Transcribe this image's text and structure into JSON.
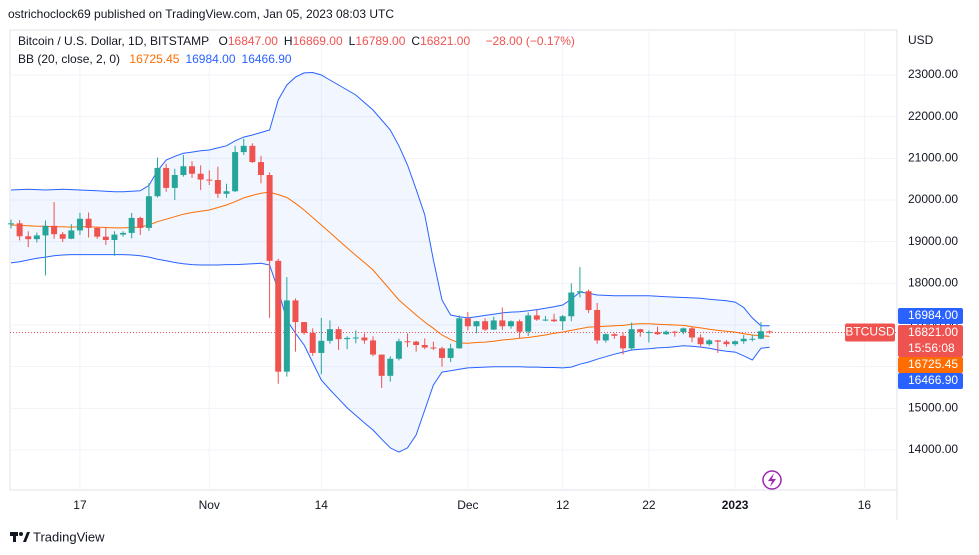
{
  "header": "ostrichoclock69 published on TradingView.com, Jan 05, 2023 08:03 UTC",
  "footer": "TradingView",
  "chart_data": {
    "type": "candlestick",
    "symbol": "Bitcoin / U.S. Dollar, 1D, BITSTAMP",
    "ohlc_text": [
      {
        "key": "O",
        "value": "16847.00"
      },
      {
        "key": "H",
        "value": "16869.00"
      },
      {
        "key": "L",
        "value": "16789.00"
      },
      {
        "key": "C",
        "value": "16821.00"
      }
    ],
    "change_text": "−28.00 (−0.17%)",
    "indicator": {
      "name": "BB (20, close, 2, 0)",
      "values": [
        {
          "text": "16725.45",
          "color": "#ff6d00"
        },
        {
          "text": "16984.00",
          "color": "#2962ff"
        },
        {
          "text": "16466.90",
          "color": "#2962ff"
        }
      ]
    },
    "currency": "USD",
    "symbol_badge": "BTCUSD",
    "up_color": "#26a69a",
    "down_color": "#ef5350",
    "categories": [
      null,
      null,
      null,
      null,
      null,
      null,
      null,
      null,
      "17",
      null,
      null,
      null,
      null,
      null,
      null,
      null,
      null,
      null,
      null,
      null,
      null,
      null,
      null,
      "Nov",
      null,
      null,
      null,
      null,
      null,
      null,
      null,
      null,
      null,
      null,
      null,
      null,
      "14",
      null,
      null,
      null,
      null,
      null,
      null,
      null,
      null,
      null,
      null,
      null,
      null,
      null,
      null,
      null,
      null,
      "Dec",
      null,
      null,
      null,
      null,
      null,
      null,
      null,
      null,
      null,
      null,
      "12",
      null,
      null,
      null,
      null,
      null,
      null,
      null,
      null,
      null,
      "22",
      null,
      null,
      null,
      null,
      null,
      null,
      null,
      null,
      null,
      "2023",
      null,
      null,
      null,
      null,
      null,
      null,
      null,
      null,
      null,
      null,
      null,
      null,
      null,
      null,
      "16",
      null,
      null,
      null
    ],
    "open": [
      19420,
      19440,
      19130,
      19060,
      19150,
      19380,
      19180,
      19070,
      19270,
      19550,
      19330,
      19120,
      19040,
      19170,
      19210,
      19570,
      19330,
      20090,
      20770,
      20290,
      20600,
      20810,
      20630,
      20490,
      20480,
      20150,
      20210,
      21150,
      21300,
      20910,
      20600,
      18540,
      15880,
      17590,
      17070,
      16810,
      16330,
      16620,
      16900,
      16660,
      16690,
      16700,
      16630,
      16290,
      15780,
      16190,
      16610,
      16600,
      16520,
      16460,
      16440,
      16210,
      16440,
      17160,
      16970,
      17090,
      16890,
      17110,
      16970,
      17090,
      16840,
      17230,
      17130,
      17130,
      17090,
      17210,
      17780,
      17810,
      17360,
      16630,
      16780,
      16740,
      16440,
      16900,
      16830,
      16830,
      16780,
      16840,
      16830,
      16920,
      16700,
      16540,
      16630,
      16600,
      16540,
      16610,
      16670,
      16670,
      16847,
      null,
      null,
      null,
      null,
      null,
      null,
      null,
      null,
      null,
      null,
      null,
      null,
      null,
      null
    ],
    "high": [
      19530,
      19520,
      19250,
      19220,
      19510,
      19950,
      19230,
      19420,
      19690,
      19700,
      19360,
      19350,
      19250,
      19250,
      19690,
      19600,
      20400,
      21020,
      20870,
      20750,
      21080,
      20930,
      20830,
      20710,
      20800,
      20390,
      21300,
      21470,
      21360,
      21060,
      20660,
      18590,
      18150,
      17640,
      17070,
      16920,
      17170,
      17110,
      16960,
      16730,
      16870,
      16800,
      16730,
      16290,
      16250,
      16670,
      16800,
      16620,
      16680,
      16600,
      16480,
      16550,
      17230,
      17310,
      17100,
      17160,
      17200,
      17420,
      17110,
      17130,
      17300,
      17360,
      17220,
      17270,
      17240,
      18000,
      18390,
      17850,
      17530,
      16800,
      16800,
      16820,
      17060,
      16910,
      16870,
      16960,
      16870,
      16860,
      16940,
      16960,
      16780,
      16660,
      16640,
      16640,
      16630,
      16760,
      16770,
      17070,
      16869,
      null,
      null,
      null,
      null,
      null,
      null,
      null,
      null,
      null,
      null,
      null,
      null,
      null,
      null
    ],
    "low": [
      19320,
      19030,
      18870,
      18980,
      18190,
      19070,
      18990,
      19060,
      19160,
      19100,
      19070,
      18920,
      18660,
      19120,
      19080,
      19160,
      19260,
      20060,
      20200,
      20000,
      20560,
      20530,
      20240,
      20360,
      20050,
      20050,
      20190,
      21080,
      20890,
      20400,
      17170,
      15590,
      15760,
      16360,
      16770,
      16260,
      15820,
      16550,
      16400,
      16420,
      16560,
      16550,
      16250,
      15490,
      15640,
      16150,
      16470,
      16360,
      16420,
      16400,
      16000,
      16110,
      16430,
      16870,
      16800,
      16860,
      16880,
      16880,
      16910,
      16690,
      16740,
      17100,
      17090,
      17070,
      16880,
      17090,
      17660,
      17290,
      16550,
      16580,
      16670,
      16290,
      16400,
      16720,
      16580,
      16760,
      16760,
      16720,
      16780,
      16590,
      16460,
      16500,
      16330,
      16480,
      16500,
      16550,
      16610,
      16660,
      16789,
      null,
      null,
      null,
      null,
      null,
      null,
      null,
      null,
      null,
      null,
      null,
      null,
      null,
      null
    ],
    "close": [
      19440,
      19130,
      19060,
      19150,
      19380,
      19180,
      19070,
      19270,
      19550,
      19330,
      19120,
      19040,
      19170,
      19210,
      19570,
      19330,
      20090,
      20770,
      20290,
      20600,
      20810,
      20630,
      20490,
      20480,
      20150,
      20210,
      21150,
      21300,
      20910,
      20600,
      18540,
      15880,
      17590,
      17070,
      16810,
      16330,
      16620,
      16900,
      16660,
      16690,
      16700,
      16630,
      16290,
      15780,
      16190,
      16610,
      16600,
      16520,
      16460,
      16440,
      16210,
      16440,
      17160,
      16970,
      17090,
      16890,
      17110,
      16970,
      17090,
      16840,
      17230,
      17130,
      17130,
      17090,
      17210,
      17780,
      17810,
      17360,
      16630,
      16780,
      16740,
      16440,
      16900,
      16830,
      16830,
      16780,
      16840,
      16830,
      16920,
      16700,
      16540,
      16630,
      16600,
      16540,
      16610,
      16670,
      16670,
      16850,
      16821,
      null,
      null,
      null,
      null,
      null,
      null,
      null,
      null,
      null,
      null,
      null,
      null,
      null,
      null
    ],
    "bb_upper": {
      "color": "#2962ff",
      "values": [
        20240,
        20250,
        20260,
        20250,
        20240,
        20250,
        20260,
        20250,
        20240,
        20230,
        20220,
        20210,
        20200,
        20200,
        20210,
        20220,
        20350,
        20700,
        20960,
        21050,
        21120,
        21150,
        21180,
        21200,
        21250,
        21300,
        21420,
        21510,
        21560,
        21620,
        21680,
        22400,
        22760,
        22950,
        23050,
        23060,
        23000,
        22880,
        22760,
        22640,
        22520,
        22340,
        22160,
        21920,
        21680,
        21300,
        20840,
        20260,
        19640,
        18560,
        17600,
        17240,
        17200,
        17170,
        17200,
        17230,
        17260,
        17290,
        17310,
        17320,
        17340,
        17370,
        17400,
        17440,
        17480,
        17620,
        17790,
        17760,
        17720,
        17710,
        17700,
        17700,
        17700,
        17700,
        17700,
        17690,
        17680,
        17670,
        17660,
        17650,
        17640,
        17620,
        17600,
        17580,
        17550,
        17420,
        17170,
        16980,
        16984,
        null,
        null,
        null,
        null,
        null,
        null,
        null,
        null,
        null,
        null,
        null,
        null,
        null,
        null
      ]
    },
    "bb_basis": {
      "color": "#ff6d00",
      "values": [
        19400,
        19390,
        19380,
        19370,
        19370,
        19360,
        19360,
        19350,
        19360,
        19360,
        19350,
        19340,
        19330,
        19330,
        19340,
        19350,
        19400,
        19480,
        19540,
        19600,
        19660,
        19700,
        19730,
        19760,
        19820,
        19880,
        19960,
        20050,
        20110,
        20160,
        20190,
        20130,
        20060,
        19920,
        19760,
        19580,
        19400,
        19220,
        19030,
        18850,
        18670,
        18500,
        18320,
        18080,
        17840,
        17600,
        17420,
        17240,
        17070,
        16920,
        16760,
        16650,
        16570,
        16560,
        16580,
        16590,
        16610,
        16640,
        16660,
        16680,
        16700,
        16730,
        16760,
        16800,
        16830,
        16870,
        16910,
        16950,
        16960,
        16970,
        16980,
        16990,
        17020,
        17030,
        17030,
        17020,
        17010,
        17000,
        16990,
        16960,
        16930,
        16900,
        16870,
        16850,
        16830,
        16790,
        16760,
        16740,
        16725.45,
        null,
        null,
        null,
        null,
        null,
        null,
        null,
        null,
        null,
        null,
        null,
        null,
        null,
        null
      ]
    },
    "bb_lower": {
      "color": "#2962ff",
      "values": [
        18490,
        18520,
        18560,
        18600,
        18630,
        18660,
        18680,
        18690,
        18690,
        18690,
        18690,
        18690,
        18690,
        18690,
        18680,
        18660,
        18630,
        18580,
        18540,
        18500,
        18470,
        18450,
        18440,
        18440,
        18440,
        18450,
        18450,
        18460,
        18470,
        18480,
        18440,
        17840,
        17120,
        16800,
        16520,
        16100,
        15680,
        15450,
        15230,
        15010,
        14830,
        14650,
        14480,
        14260,
        14050,
        13950,
        14050,
        14360,
        14960,
        15560,
        15870,
        15900,
        15940,
        15970,
        15980,
        15990,
        16000,
        16000,
        16000,
        16000,
        15990,
        15990,
        15980,
        15980,
        15970,
        15990,
        16060,
        16110,
        16180,
        16240,
        16300,
        16350,
        16400,
        16420,
        16430,
        16450,
        16460,
        16480,
        16500,
        16490,
        16470,
        16440,
        16400,
        16370,
        16350,
        16260,
        16160,
        16440,
        16466.9,
        null,
        null,
        null,
        null,
        null,
        null,
        null,
        null,
        null,
        null,
        null,
        null,
        null,
        null
      ]
    },
    "band_fill": "#2962ff",
    "ylim": [
      13040,
      24080
    ],
    "yticks": [
      {
        "value": 14000,
        "label": "14000.00"
      },
      {
        "value": 15000,
        "label": "15000.00"
      },
      {
        "value": 16000,
        "label": "16000.00"
      },
      {
        "value": 17000,
        "label": "17000.00"
      },
      {
        "value": 18000,
        "label": "18000.00"
      },
      {
        "value": 19000,
        "label": "19000.00"
      },
      {
        "value": 20000,
        "label": "20000.00"
      },
      {
        "value": 21000,
        "label": "21000.00"
      },
      {
        "value": 22000,
        "label": "22000.00"
      },
      {
        "value": 23000,
        "label": "23000.00"
      }
    ],
    "grid": true,
    "price_badges": [
      {
        "value": 16984,
        "label": "16984.00",
        "color": "#2962ff"
      },
      {
        "value": 16821,
        "label": "16821.00",
        "color": "#ef5350",
        "countdown": "15:56:08"
      },
      {
        "value": 16725.45,
        "label": "16725.45",
        "color": "#ff6d00"
      },
      {
        "value": 16466.9,
        "label": "16466.90",
        "color": "#2962ff"
      }
    ]
  }
}
